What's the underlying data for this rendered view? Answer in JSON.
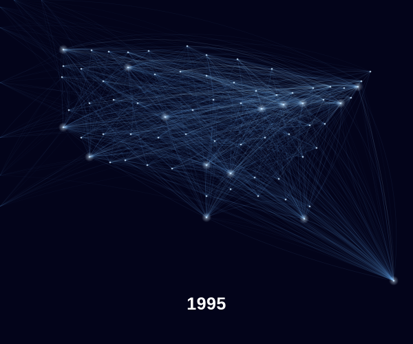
{
  "year_label": "1995",
  "colors": {
    "background": "#03041a",
    "route_line": "#6aa8e8",
    "route_highlight": "#a9dcff",
    "node": "#cfe9ff",
    "label": "#ffffff"
  }
}
